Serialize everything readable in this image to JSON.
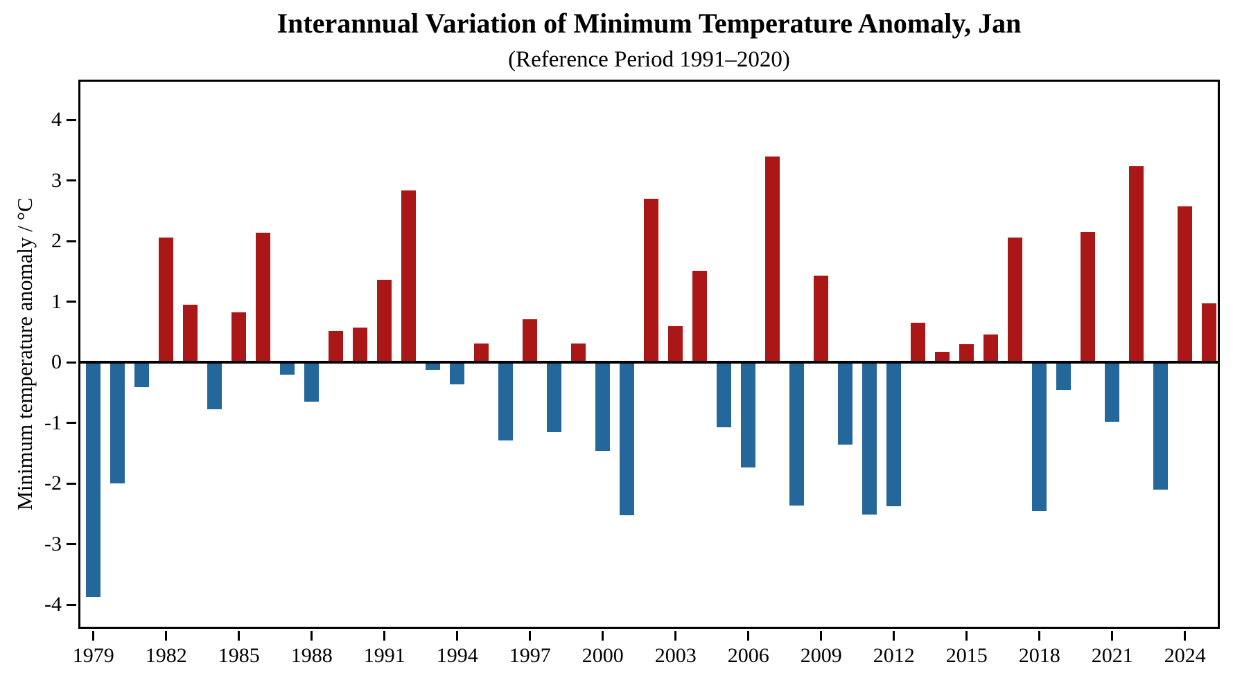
{
  "chart_data": {
    "type": "bar",
    "title": "Interannual Variation of Minimum Temperature Anomaly, Jan",
    "subtitle": "(Reference Period 1991–2020)",
    "xlabel": "",
    "ylabel": "Minimum temperature anomaly / °C",
    "x": [
      1979,
      1980,
      1981,
      1982,
      1983,
      1984,
      1985,
      1986,
      1987,
      1988,
      1989,
      1990,
      1991,
      1992,
      1993,
      1994,
      1995,
      1996,
      1997,
      1998,
      1999,
      2000,
      2001,
      2002,
      2003,
      2004,
      2005,
      2006,
      2007,
      2008,
      2009,
      2010,
      2011,
      2012,
      2013,
      2014,
      2015,
      2016,
      2017,
      2018,
      2019,
      2020,
      2021,
      2022,
      2023,
      2024,
      2025
    ],
    "values": [
      -3.87,
      -2.0,
      -0.41,
      2.06,
      0.95,
      -0.78,
      0.82,
      2.14,
      -0.21,
      -0.65,
      0.52,
      0.57,
      1.36,
      2.84,
      -0.13,
      -0.36,
      0.31,
      -1.29,
      0.71,
      -1.15,
      0.31,
      -1.46,
      -2.52,
      2.7,
      0.59,
      1.51,
      -1.07,
      -1.74,
      3.4,
      -2.36,
      1.43,
      -1.36,
      -2.51,
      -2.38,
      0.65,
      0.17,
      0.3,
      0.46,
      2.06,
      -2.46,
      -0.46,
      2.15,
      -0.98,
      3.23,
      -2.1,
      2.57,
      0.97
    ],
    "xtick_years": [
      1979,
      1982,
      1985,
      1988,
      1991,
      1994,
      1997,
      2000,
      2003,
      2006,
      2009,
      2012,
      2015,
      2018,
      2021,
      2024
    ],
    "yticks": [
      4,
      3,
      2,
      1,
      0,
      -1,
      -2,
      -3,
      -4
    ],
    "ylim": [
      -4.43,
      4.63
    ],
    "grid": false,
    "legend": null,
    "colors": {
      "positive": "#AB1717",
      "negative": "#24689B",
      "axis": "#000000"
    }
  }
}
